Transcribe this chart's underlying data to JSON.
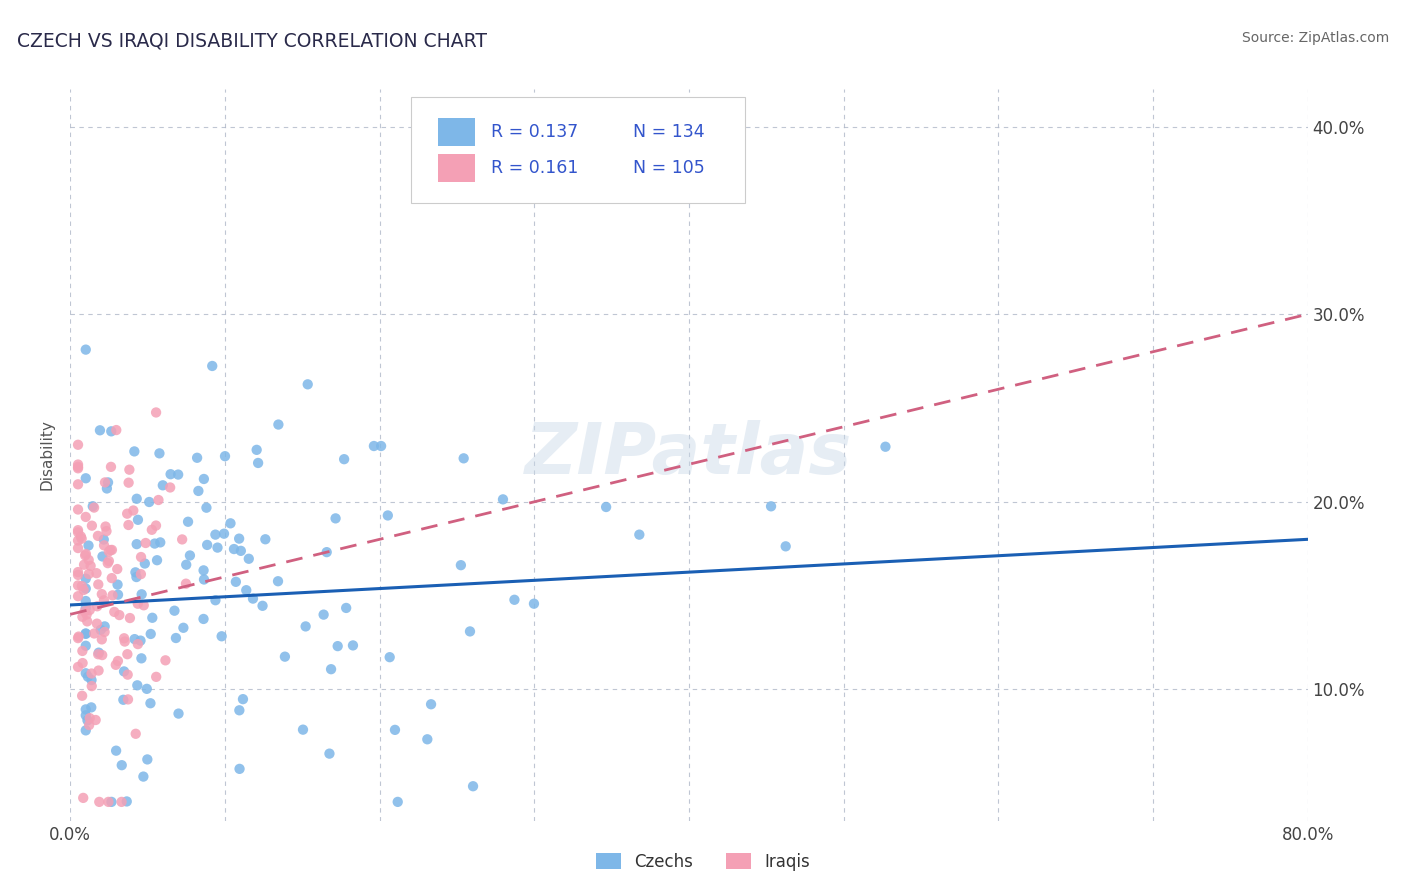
{
  "title": "CZECH VS IRAQI DISABILITY CORRELATION CHART",
  "source": "Source: ZipAtlas.com",
  "ylabel": "Disability",
  "xlim": [
    0.0,
    0.8
  ],
  "ylim": [
    0.03,
    0.42
  ],
  "xtick_vals": [
    0.0,
    0.1,
    0.2,
    0.3,
    0.4,
    0.5,
    0.6,
    0.7,
    0.8
  ],
  "xticklabels": [
    "0.0%",
    "",
    "",
    "",
    "",
    "",
    "",
    "",
    "80.0%"
  ],
  "ytick_vals": [
    0.1,
    0.2,
    0.3,
    0.4
  ],
  "yticklabels": [
    "10.0%",
    "20.0%",
    "30.0%",
    "40.0%"
  ],
  "czech_R": 0.137,
  "czech_N": 134,
  "iraqi_R": 0.161,
  "iraqi_N": 105,
  "czech_color": "#7eb7e8",
  "iraqi_color": "#f4a0b5",
  "czech_line_color": "#1a5fb4",
  "iraqi_line_color": "#d06080",
  "watermark": "ZIPatlas",
  "grid_color": "#b0b8c8",
  "background_color": "#ffffff",
  "legend_R_color": "#3355cc",
  "legend_N_color": "#3355cc",
  "title_color": "#2a2a4a",
  "source_color": "#666666",
  "ylabel_color": "#555555"
}
